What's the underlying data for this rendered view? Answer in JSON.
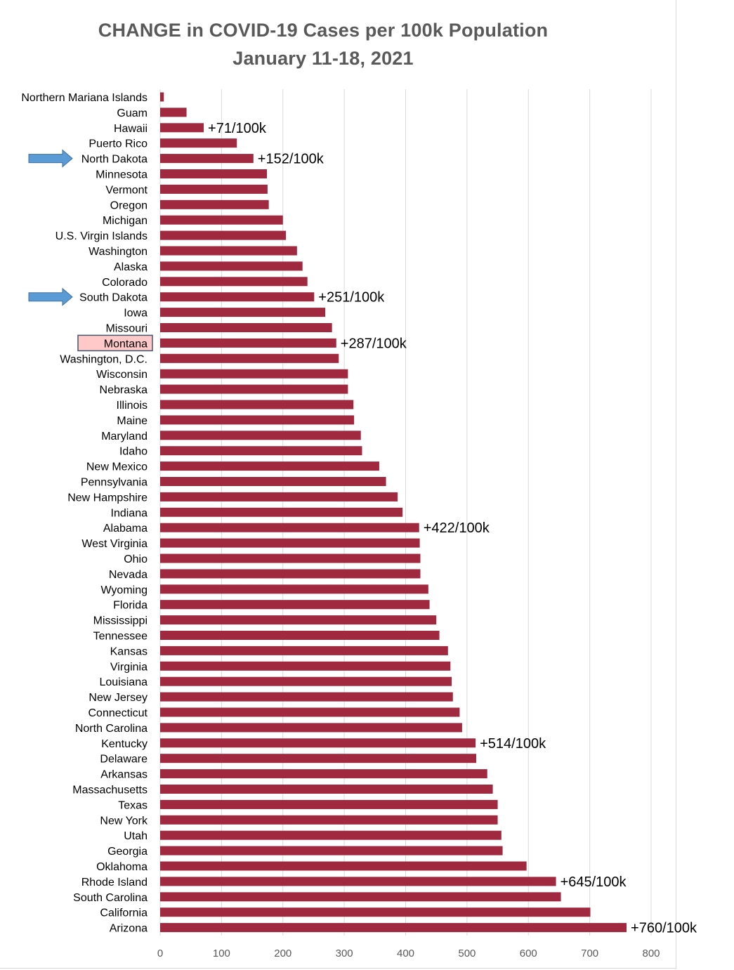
{
  "chart_data": {
    "type": "bar",
    "orientation": "horizontal",
    "title": "CHANGE in COVID-19 Cases per 100k Population",
    "subtitle": "January 11-18, 2021",
    "xlabel": "",
    "ylabel": "",
    "xlim": [
      0,
      800
    ],
    "xticks": [
      0,
      100,
      200,
      300,
      400,
      500,
      600,
      700,
      800
    ],
    "grid": true,
    "bar_color": "#A0283F",
    "arrow_color": "#5B9BD5",
    "highlight_fill": "#FFC9C9",
    "highlight_border": "#44546A",
    "categories": [
      "Northern Mariana Islands",
      "Guam",
      "Hawaii",
      "Puerto Rico",
      "North Dakota",
      "Minnesota",
      "Vermont",
      "Oregon",
      "Michigan",
      "U.S. Virgin Islands",
      "Washington",
      "Alaska",
      "Colorado",
      "South Dakota",
      "Iowa",
      "Missouri",
      "Montana",
      "Washington, D.C.",
      "Wisconsin",
      "Nebraska",
      "Illinois",
      "Maine",
      "Maryland",
      "Idaho",
      "New Mexico",
      "Pennsylvania",
      "New Hampshire",
      "Indiana",
      "Alabama",
      "West Virginia",
      "Ohio",
      "Nevada",
      "Wyoming",
      "Florida",
      "Mississippi",
      "Tennessee",
      "Kansas",
      "Virginia",
      "Louisiana",
      "New Jersey",
      "Connecticut",
      "North Carolina",
      "Kentucky",
      "Delaware",
      "Arkansas",
      "Massachusetts",
      "Texas",
      "New York",
      "Utah",
      "Georgia",
      "Oklahoma",
      "Rhode Island",
      "South Carolina",
      "California",
      "Arizona"
    ],
    "values": [
      6,
      43,
      71,
      125,
      152,
      174,
      175,
      177,
      200,
      205,
      223,
      232,
      240,
      251,
      269,
      280,
      287,
      291,
      306,
      306,
      315,
      316,
      327,
      329,
      357,
      368,
      387,
      395,
      422,
      423,
      424,
      424,
      437,
      439,
      450,
      455,
      469,
      473,
      475,
      477,
      488,
      492,
      514,
      515,
      533,
      542,
      550,
      550,
      556,
      558,
      597,
      645,
      653,
      701,
      760
    ],
    "annotations": [
      {
        "category": "Hawaii",
        "text": "+71/100k"
      },
      {
        "category": "North Dakota",
        "text": "+152/100k"
      },
      {
        "category": "South Dakota",
        "text": "+251/100k"
      },
      {
        "category": "Montana",
        "text": "+287/100k"
      },
      {
        "category": "Alabama",
        "text": "+422/100k"
      },
      {
        "category": "Kentucky",
        "text": "+514/100k"
      },
      {
        "category": "Rhode Island",
        "text": "+645/100k"
      },
      {
        "category": "Arizona",
        "text": "+760/100k"
      }
    ],
    "arrows": [
      "North Dakota",
      "South Dakota"
    ],
    "highlight": "Montana"
  }
}
